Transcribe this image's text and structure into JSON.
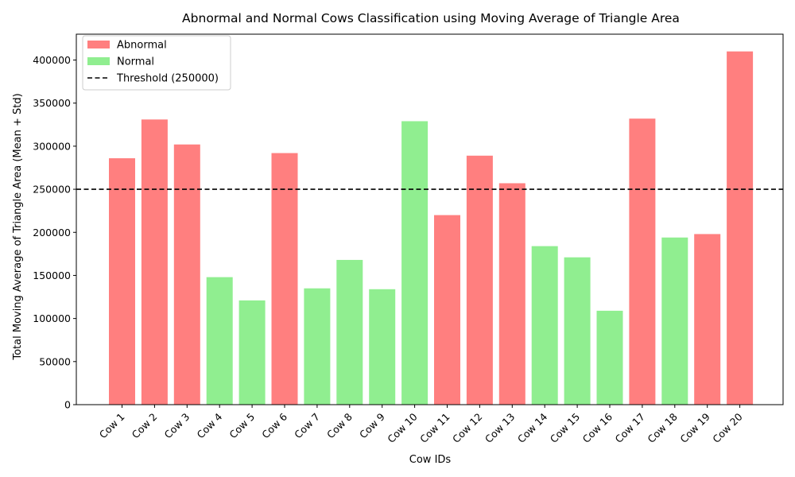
{
  "chart_data": {
    "type": "bar",
    "title": "Abnormal and Normal Cows Classification using Moving Average of Triangle Area",
    "xlabel": "Cow IDs",
    "ylabel": "Total Moving Average of Triangle Area (Mean + Std)",
    "ylim": [
      0,
      430000
    ],
    "yticks": [
      0,
      50000,
      100000,
      150000,
      200000,
      250000,
      300000,
      350000,
      400000
    ],
    "categories": [
      "Cow 1",
      "Cow 2",
      "Cow 3",
      "Cow 4",
      "Cow 5",
      "Cow 6",
      "Cow 7",
      "Cow 8",
      "Cow 9",
      "Cow 10",
      "Cow 11",
      "Cow 12",
      "Cow 13",
      "Cow 14",
      "Cow 15",
      "Cow 16",
      "Cow 17",
      "Cow 18",
      "Cow 19",
      "Cow 20"
    ],
    "values": [
      286000,
      331000,
      302000,
      148000,
      121000,
      292000,
      135000,
      168000,
      134000,
      329000,
      220000,
      289000,
      257000,
      184000,
      171000,
      109000,
      332000,
      194000,
      198000,
      410000
    ],
    "classes": [
      "Abnormal",
      "Abnormal",
      "Abnormal",
      "Normal",
      "Normal",
      "Abnormal",
      "Normal",
      "Normal",
      "Normal",
      "Normal",
      "Abnormal",
      "Abnormal",
      "Abnormal",
      "Normal",
      "Normal",
      "Normal",
      "Abnormal",
      "Normal",
      "Abnormal",
      "Abnormal"
    ],
    "threshold": {
      "value": 250000,
      "label": "Threshold (250000)",
      "style": "dashed",
      "color": "#000000"
    },
    "colors": {
      "Abnormal": "#ff7f7f",
      "Normal": "#90ee90",
      "Abnormal_label": "#ff0000",
      "Normal_label": "#008000"
    },
    "legend": {
      "position": "top-left",
      "entries": [
        "Abnormal",
        "Normal",
        "Threshold (250000)"
      ]
    },
    "grid": false
  }
}
